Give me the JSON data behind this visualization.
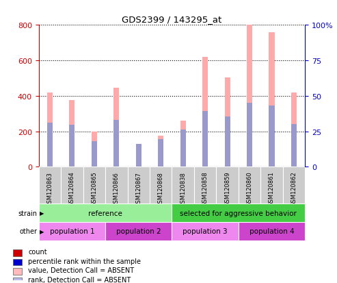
{
  "title": "GDS2399 / 143295_at",
  "samples": [
    "GSM120863",
    "GSM120864",
    "GSM120865",
    "GSM120866",
    "GSM120867",
    "GSM120868",
    "GSM120838",
    "GSM120858",
    "GSM120859",
    "GSM120860",
    "GSM120861",
    "GSM120862"
  ],
  "pink_bars": [
    420,
    375,
    200,
    445,
    130,
    175,
    260,
    620,
    505,
    800,
    760,
    420
  ],
  "blue_bars": [
    250,
    235,
    145,
    265,
    130,
    155,
    210,
    315,
    285,
    360,
    345,
    240
  ],
  "left_ylim": [
    0,
    800
  ],
  "right_ylim": [
    0,
    100
  ],
  "left_yticks": [
    0,
    200,
    400,
    600,
    800
  ],
  "right_yticks": [
    0,
    25,
    50,
    75,
    100
  ],
  "right_yticklabels": [
    "0",
    "25",
    "50",
    "75",
    "100%"
  ],
  "left_tick_color": "#cc0000",
  "right_tick_color": "#0000cc",
  "strain_labels": [
    {
      "text": "reference",
      "start": 0,
      "end": 6,
      "color": "#99ee99"
    },
    {
      "text": "selected for aggressive behavior",
      "start": 6,
      "end": 12,
      "color": "#44cc44"
    }
  ],
  "other_labels": [
    {
      "text": "population 1",
      "start": 0,
      "end": 3,
      "color": "#ee88ee"
    },
    {
      "text": "population 2",
      "start": 3,
      "end": 6,
      "color": "#cc44cc"
    },
    {
      "text": "population 3",
      "start": 6,
      "end": 9,
      "color": "#ee88ee"
    },
    {
      "text": "population 4",
      "start": 9,
      "end": 12,
      "color": "#cc44cc"
    }
  ],
  "legend_items": [
    {
      "label": "count",
      "color": "#cc0000"
    },
    {
      "label": "percentile rank within the sample",
      "color": "#0000cc"
    },
    {
      "label": "value, Detection Call = ABSENT",
      "color": "#ffbbbb"
    },
    {
      "label": "rank, Detection Call = ABSENT",
      "color": "#bbbbee"
    }
  ],
  "pink_color": "#ffaaaa",
  "blue_color": "#9999cc",
  "xticklabel_bg": "#cccccc",
  "bar_width": 0.25
}
